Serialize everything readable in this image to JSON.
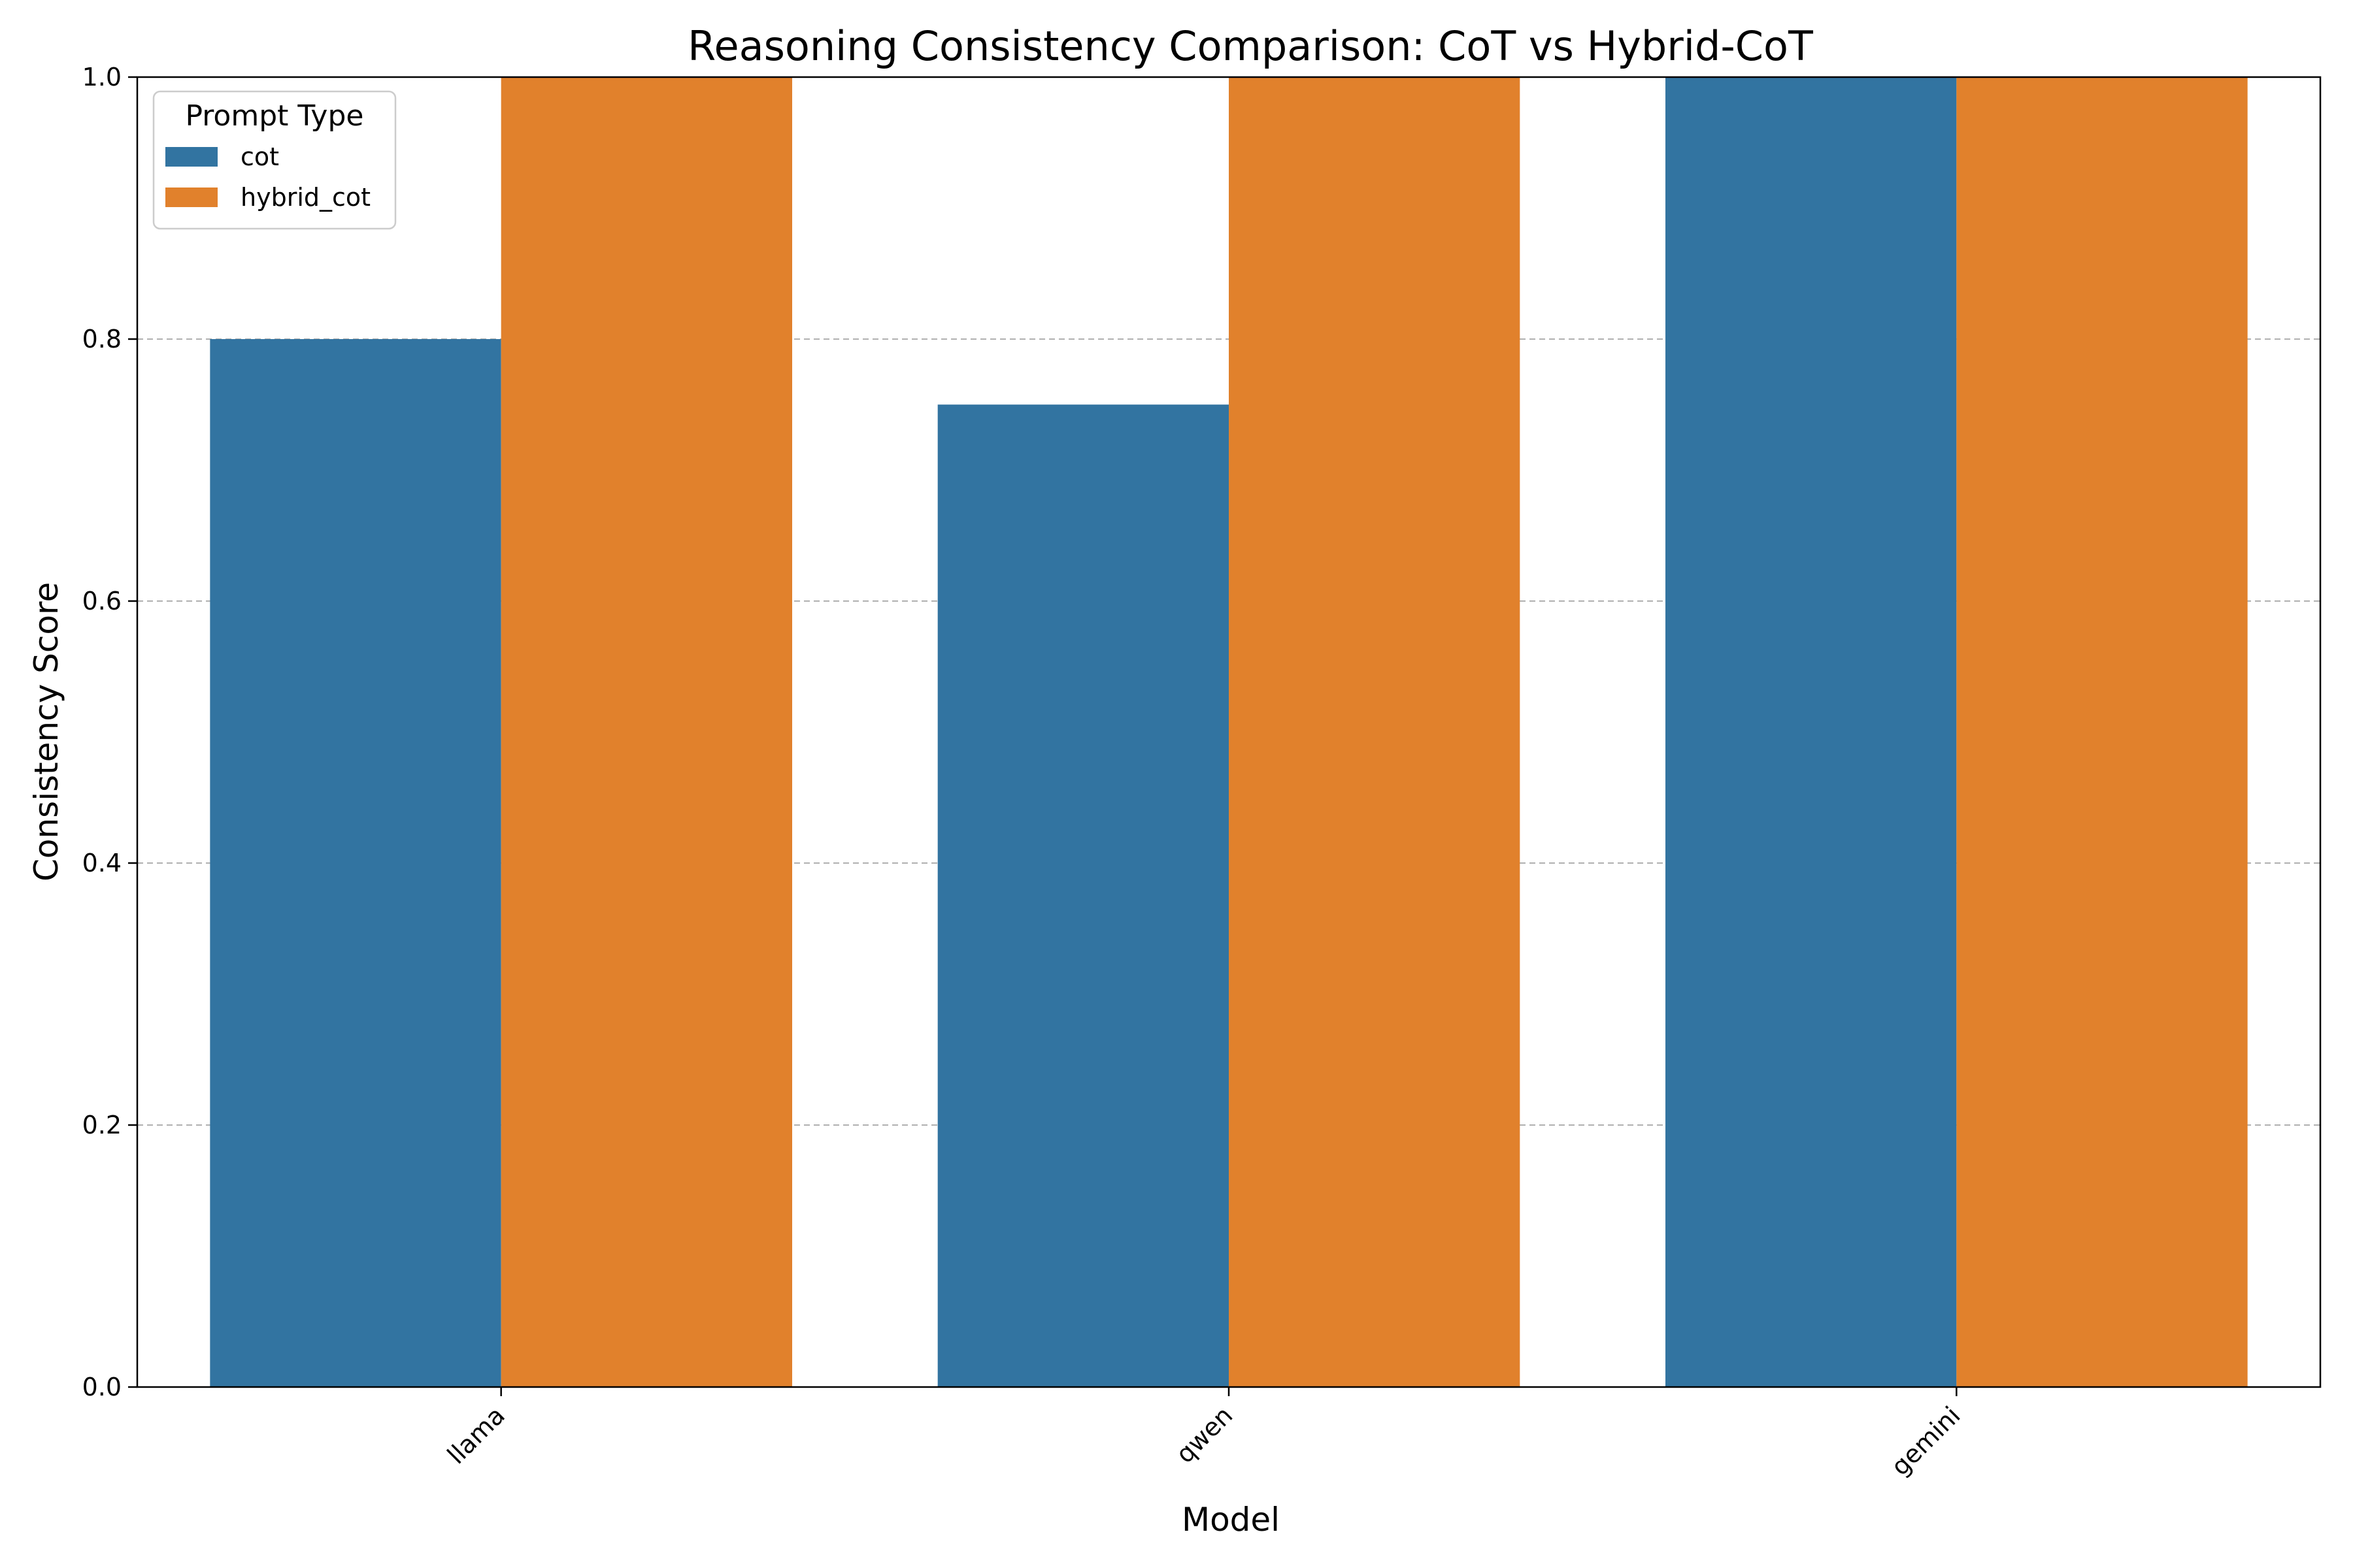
{
  "chart_data": {
    "type": "bar",
    "title": "Reasoning Consistency Comparison: CoT vs Hybrid-CoT",
    "xlabel": "Model",
    "ylabel": "Consistency Score",
    "categories": [
      "llama",
      "qwen",
      "gemini"
    ],
    "series": [
      {
        "name": "cot",
        "values": [
          0.8,
          0.75,
          1.0
        ],
        "color": "#3274a1"
      },
      {
        "name": "hybrid_cot",
        "values": [
          1.0,
          1.0,
          1.0
        ],
        "color": "#e1812c"
      }
    ],
    "ylim": [
      0,
      1.0
    ],
    "yticks": [
      "0.0",
      "0.2",
      "0.4",
      "0.6",
      "0.8",
      "1.0"
    ],
    "grid": "y-dashed",
    "legend": {
      "title": "Prompt Type",
      "placement": "top-left"
    }
  }
}
